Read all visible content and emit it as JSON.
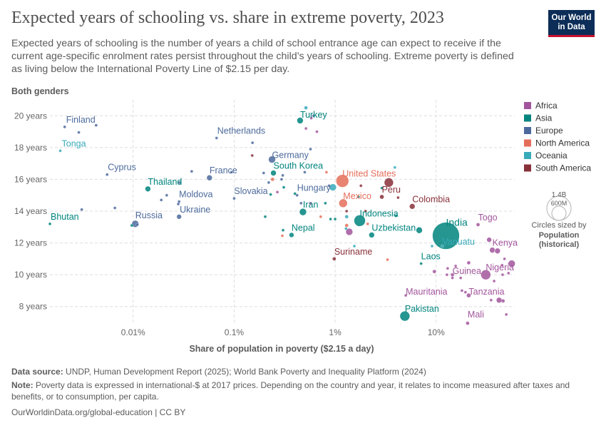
{
  "header": {
    "title": "Expected years of schooling vs. share in extreme poverty, 2023",
    "subtitle": "Expected years of schooling is the number of years a child of school entrance age can expect to receive if the current age-specific enrolment rates persist throughout the child’s years of schooling. Extreme poverty is defined as living below the International Poverty Line of $2.15 per day.",
    "logo_line1": "Our World",
    "logo_line2": "in Data"
  },
  "footer": {
    "source_label": "Data source:",
    "source_text": " UNDP, Human Development Report (2025); World Bank Poverty and Inequality Platform (2024)",
    "note_label": "Note:",
    "note_text": " Poverty data is expressed in international-$ at 2017 prices. Depending on the country and year, it relates to income measured after taxes and benefits, or to consumption, per capita.",
    "url": "OurWorldinData.org/global-education | CC BY"
  },
  "colors": {
    "Africa": "#a2559c",
    "Asia": "#00847e",
    "Europe": "#4c6a9c",
    "North America": "#e56e5a",
    "Oceania": "#38aaba",
    "South America": "#883039"
  },
  "size_legend": {
    "big_label": "1.4B",
    "small_label": "600M",
    "caption": "Circles sized by",
    "caption_bold_1": "Population",
    "caption_bold_2": "(historical)"
  },
  "chart_data": {
    "type": "scatter",
    "subtitle_label": "Both genders",
    "xlabel": "Share of population in poverty ($2.15 a day)",
    "ylabel": "",
    "x_scale": "log",
    "xlim": [
      0.0015,
      60
    ],
    "ylim": [
      7,
      21
    ],
    "x_ticks": [
      {
        "v": 0.01,
        "label": "0.01%"
      },
      {
        "v": 0.1,
        "label": "0.1%"
      },
      {
        "v": 1,
        "label": "1%"
      },
      {
        "v": 10,
        "label": "10%"
      }
    ],
    "y_ticks": [
      {
        "v": 8,
        "label": "8 years"
      },
      {
        "v": 10,
        "label": "10 years"
      },
      {
        "v": 12,
        "label": "12 years"
      },
      {
        "v": 14,
        "label": "14 years"
      },
      {
        "v": 16,
        "label": "16 years"
      },
      {
        "v": 18,
        "label": "18 years"
      },
      {
        "v": 20,
        "label": "20 years"
      }
    ],
    "grid": true,
    "legend_position": "right",
    "legend": [
      "Africa",
      "Asia",
      "Europe",
      "North America",
      "Oceania",
      "South America"
    ],
    "points": [
      {
        "label": "Bhutan",
        "continent": "Asia",
        "x": 0.0015,
        "y": 13.2,
        "size": 2,
        "lx": 1,
        "ly": -6
      },
      {
        "label": "Cyprus",
        "continent": "Europe",
        "x": 0.00553,
        "y": 16.3,
        "size": 2,
        "lx": 1,
        "ly": -6
      },
      {
        "label": "Finland",
        "continent": "Europe",
        "x": 0.0021,
        "y": 19.3,
        "size": 2,
        "lx": 2,
        "ly": -6
      },
      {
        "label": "Tonga",
        "continent": "Oceania",
        "x": 0.0019,
        "y": 17.8,
        "size": 2,
        "lx": 2,
        "ly": -6
      },
      {
        "label": "Thailand",
        "continent": "Asia",
        "x": 0.014,
        "y": 15.4,
        "size": 4,
        "lx": 0,
        "ly": -6
      },
      {
        "label": "Russia",
        "continent": "Europe",
        "x": 0.0105,
        "y": 13.2,
        "size": 5,
        "lx": 0,
        "ly": -8
      },
      {
        "label": "Moldova",
        "continent": "Europe",
        "x": 0.0285,
        "y": 14.6,
        "size": 2,
        "lx": 0,
        "ly": -6
      },
      {
        "label": "Ukraine",
        "continent": "Europe",
        "x": 0.0285,
        "y": 13.65,
        "size": 3.5,
        "lx": 1,
        "ly": -6
      },
      {
        "label": "France",
        "continent": "Europe",
        "x": 0.057,
        "y": 16.1,
        "size": 4,
        "lx": 0,
        "ly": -6
      },
      {
        "label": "Netherlands",
        "continent": "Europe",
        "x": 0.067,
        "y": 18.6,
        "size": 2,
        "lx": 1,
        "ly": -6
      },
      {
        "label": "Slovakia",
        "continent": "Europe",
        "x": 0.1,
        "y": 14.8,
        "size": 2,
        "lx": 0,
        "ly": -6
      },
      {
        "label": "Germany",
        "continent": "Europe",
        "x": 0.237,
        "y": 17.25,
        "size": 5,
        "lx": 0,
        "ly": -2
      },
      {
        "label": "South Korea",
        "continent": "Asia",
        "x": 0.245,
        "y": 16.4,
        "size": 4,
        "lx": 0,
        "ly": -6
      },
      {
        "label": "Turkey",
        "continent": "Asia",
        "x": 0.45,
        "y": 19.7,
        "size": 4.5,
        "lx": 0,
        "ly": -4
      },
      {
        "label": "Hungary",
        "continent": "Europe",
        "x": 0.42,
        "y": 15.0,
        "size": 2,
        "lx": 0,
        "ly": -6
      },
      {
        "label": "Iran",
        "continent": "Asia",
        "x": 0.48,
        "y": 13.95,
        "size": 5,
        "lx": 0,
        "ly": -6
      },
      {
        "label": "Nepal",
        "continent": "Asia",
        "x": 0.37,
        "y": 12.5,
        "size": 3.5,
        "lx": 0,
        "ly": -6
      },
      {
        "label": "United States",
        "continent": "North America",
        "x": 1.18,
        "y": 15.9,
        "size": 9,
        "lx": 0,
        "ly": -6
      },
      {
        "label": "Mexico",
        "continent": "North America",
        "x": 1.2,
        "y": 14.5,
        "size": 6,
        "lx": 0,
        "ly": -6
      },
      {
        "label": "Peru",
        "continent": "South America",
        "x": 2.9,
        "y": 14.9,
        "size": 3,
        "lx": 0,
        "ly": -6
      },
      {
        "label": "Colombia",
        "continent": "South America",
        "x": 5.8,
        "y": 14.3,
        "size": 4,
        "lx": 0,
        "ly": -6
      },
      {
        "label": "Indonesia",
        "continent": "Asia",
        "x": 1.75,
        "y": 13.4,
        "size": 8,
        "lx": 0,
        "ly": -6
      },
      {
        "label": "Uzbekistan",
        "continent": "Asia",
        "x": 2.3,
        "y": 12.5,
        "size": 4,
        "lx": 0,
        "ly": -6
      },
      {
        "label": "Suriname",
        "continent": "South America",
        "x": 0.98,
        "y": 11.0,
        "size": 2.5,
        "lx": 0,
        "ly": -6
      },
      {
        "label": "India",
        "continent": "Asia",
        "x": 12.5,
        "y": 12.45,
        "size": 19,
        "lx": 0,
        "ly": -14
      },
      {
        "label": "Vanuatu",
        "continent": "Oceania",
        "x": 11.5,
        "y": 11.8,
        "size": 2,
        "lx": 0,
        "ly": -2
      },
      {
        "label": "Laos",
        "continent": "Asia",
        "x": 7.1,
        "y": 10.7,
        "size": 2,
        "lx": 0,
        "ly": -6
      },
      {
        "label": "Pakistan",
        "continent": "Asia",
        "x": 4.9,
        "y": 7.4,
        "size": 7,
        "lx": 0,
        "ly": -6
      },
      {
        "label": "Togo",
        "continent": "Africa",
        "x": 26,
        "y": 13.15,
        "size": 2.5,
        "lx": 0,
        "ly": -6
      },
      {
        "label": "Kenya",
        "continent": "Africa",
        "x": 36,
        "y": 11.55,
        "size": 4,
        "lx": 0,
        "ly": -6
      },
      {
        "label": "Nigeria",
        "continent": "Africa",
        "x": 31,
        "y": 10.0,
        "size": 7,
        "lx": 0,
        "ly": -6
      },
      {
        "label": "Guinea",
        "continent": "Africa",
        "x": 14.5,
        "y": 10.0,
        "size": 2.5,
        "lx": 0,
        "ly": -1
      },
      {
        "label": "Mauritania",
        "continent": "Africa",
        "x": 5.0,
        "y": 8.7,
        "size": 2,
        "lx": 0,
        "ly": -1
      },
      {
        "label": "Tanzania",
        "continent": "Africa",
        "x": 21,
        "y": 8.7,
        "size": 3,
        "lx": 0,
        "ly": -1
      },
      {
        "label": "Mali",
        "continent": "Africa",
        "x": 20.5,
        "y": 6.95,
        "size": 2.5,
        "lx": 0,
        "ly": -8
      },
      {
        "label": "",
        "continent": "Europe",
        "x": 0.0029,
        "y": 18.95,
        "size": 2
      },
      {
        "label": "",
        "continent": "Europe",
        "x": 0.0043,
        "y": 19.4,
        "size": 2
      },
      {
        "label": "",
        "continent": "Europe",
        "x": 0.0031,
        "y": 14.1,
        "size": 2
      },
      {
        "label": "",
        "continent": "Europe",
        "x": 0.0066,
        "y": 14.2,
        "size": 2
      },
      {
        "label": "",
        "continent": "Europe",
        "x": 0.011,
        "y": 13.15,
        "size": 2
      },
      {
        "label": "",
        "continent": "Asia",
        "x": 0.0097,
        "y": 13.1,
        "size": 2
      },
      {
        "label": "",
        "continent": "Europe",
        "x": 0.019,
        "y": 14.7,
        "size": 2
      },
      {
        "label": "",
        "continent": "Europe",
        "x": 0.0215,
        "y": 15.0,
        "size": 2
      },
      {
        "label": "",
        "continent": "Europe",
        "x": 0.0288,
        "y": 15.8,
        "size": 2
      },
      {
        "label": "",
        "continent": "Europe",
        "x": 0.038,
        "y": 16.5,
        "size": 2
      },
      {
        "label": "",
        "continent": "Europe",
        "x": 0.028,
        "y": 14.45,
        "size": 2
      },
      {
        "label": "",
        "continent": "Europe",
        "x": 0.094,
        "y": 16.45,
        "size": 2
      },
      {
        "label": "",
        "continent": "Europe",
        "x": 0.152,
        "y": 18.3,
        "size": 2
      },
      {
        "label": "",
        "continent": "South America",
        "x": 0.151,
        "y": 17.5,
        "size": 2
      },
      {
        "label": "",
        "continent": "Europe",
        "x": 0.196,
        "y": 16.4,
        "size": 2
      },
      {
        "label": "",
        "continent": "Europe",
        "x": 0.22,
        "y": 15.8,
        "size": 2
      },
      {
        "label": "",
        "continent": "Europe",
        "x": 0.295,
        "y": 16.0,
        "size": 2
      },
      {
        "label": "",
        "continent": "Europe",
        "x": 0.303,
        "y": 16.25,
        "size": 2
      },
      {
        "label": "",
        "continent": "North America",
        "x": 0.24,
        "y": 16.0,
        "size": 2.5
      },
      {
        "label": "",
        "continent": "Asia",
        "x": 0.23,
        "y": 15.05,
        "size": 2
      },
      {
        "label": "",
        "continent": "Africa",
        "x": 0.268,
        "y": 15.2,
        "size": 2
      },
      {
        "label": "",
        "continent": "Asia",
        "x": 0.31,
        "y": 15.5,
        "size": 2
      },
      {
        "label": "",
        "continent": "Asia",
        "x": 0.203,
        "y": 13.65,
        "size": 2
      },
      {
        "label": "",
        "continent": "Asia",
        "x": 0.305,
        "y": 12.8,
        "size": 2
      },
      {
        "label": "",
        "continent": "North America",
        "x": 0.3,
        "y": 12.45,
        "size": 2
      },
      {
        "label": "",
        "continent": "Oceania",
        "x": 0.514,
        "y": 20.5,
        "size": 2.5
      },
      {
        "label": "",
        "continent": "Africa",
        "x": 0.514,
        "y": 19.2,
        "size": 2
      },
      {
        "label": "",
        "continent": "Africa",
        "x": 0.58,
        "y": 19.85,
        "size": 2
      },
      {
        "label": "",
        "continent": "Europe",
        "x": 0.61,
        "y": 20.0,
        "size": 2
      },
      {
        "label": "",
        "continent": "Africa",
        "x": 0.66,
        "y": 19.0,
        "size": 2
      },
      {
        "label": "",
        "continent": "Europe",
        "x": 0.57,
        "y": 17.9,
        "size": 2
      },
      {
        "label": "",
        "continent": "Europe",
        "x": 0.5,
        "y": 16.45,
        "size": 2
      },
      {
        "label": "",
        "continent": "Asia",
        "x": 0.4,
        "y": 15.1,
        "size": 2
      },
      {
        "label": "",
        "continent": "Europe",
        "x": 0.46,
        "y": 14.5,
        "size": 2
      },
      {
        "label": "",
        "continent": "Africa",
        "x": 0.57,
        "y": 14.5,
        "size": 2
      },
      {
        "label": "",
        "continent": "North America",
        "x": 0.72,
        "y": 13.65,
        "size": 2
      },
      {
        "label": "",
        "continent": "Asia",
        "x": 0.8,
        "y": 14.5,
        "size": 2
      },
      {
        "label": "",
        "continent": "North America",
        "x": 0.82,
        "y": 16.45,
        "size": 2
      },
      {
        "label": "",
        "continent": "Asia",
        "x": 0.9,
        "y": 13.5,
        "size": 2
      },
      {
        "label": "",
        "continent": "Oceania",
        "x": 0.95,
        "y": 15.5,
        "size": 5
      },
      {
        "label": "",
        "continent": "Europe",
        "x": 0.87,
        "y": 15.6,
        "size": 2
      },
      {
        "label": "",
        "continent": "Asia",
        "x": 1.0,
        "y": 13.5,
        "size": 2
      },
      {
        "label": "",
        "continent": "South America",
        "x": 1.3,
        "y": 14.0,
        "size": 2
      },
      {
        "label": "",
        "continent": "Oceania",
        "x": 1.3,
        "y": 13.65,
        "size": 2.5
      },
      {
        "label": "",
        "continent": "Africa",
        "x": 1.38,
        "y": 12.7,
        "size": 5
      },
      {
        "label": "",
        "continent": "Oceania",
        "x": 1.28,
        "y": 12.9,
        "size": 2
      },
      {
        "label": "",
        "continent": "North America",
        "x": 1.3,
        "y": 13.1,
        "size": 2.5
      },
      {
        "label": "",
        "continent": "Oceania",
        "x": 1.55,
        "y": 11.8,
        "size": 2
      },
      {
        "label": "",
        "continent": "Asia",
        "x": 1.7,
        "y": 14.9,
        "size": 2
      },
      {
        "label": "",
        "continent": "South America",
        "x": 1.8,
        "y": 15.6,
        "size": 2
      },
      {
        "label": "",
        "continent": "North America",
        "x": 2.1,
        "y": 13.2,
        "size": 2
      },
      {
        "label": "",
        "continent": "South America",
        "x": 2.0,
        "y": 14.0,
        "size": 2
      },
      {
        "label": "",
        "continent": "Asia",
        "x": 2.9,
        "y": 15.45,
        "size": 2
      },
      {
        "label": "",
        "continent": "South America",
        "x": 3.4,
        "y": 15.8,
        "size": 6.5
      },
      {
        "label": "",
        "continent": "North America",
        "x": 3.3,
        "y": 10.95,
        "size": 2
      },
      {
        "label": "",
        "continent": "Asia",
        "x": 4.0,
        "y": 13.7,
        "size": 2
      },
      {
        "label": "",
        "continent": "South America",
        "x": 4.2,
        "y": 14.85,
        "size": 2
      },
      {
        "label": "",
        "continent": "Oceania",
        "x": 3.9,
        "y": 16.75,
        "size": 2
      },
      {
        "label": "",
        "continent": "Asia",
        "x": 6.8,
        "y": 12.8,
        "size": 4.5
      },
      {
        "label": "",
        "continent": "Oceania",
        "x": 9.1,
        "y": 11.8,
        "size": 2
      },
      {
        "label": "",
        "continent": "Africa",
        "x": 9.6,
        "y": 10.2,
        "size": 2.5
      },
      {
        "label": "",
        "continent": "Africa",
        "x": 13.0,
        "y": 10.4,
        "size": 2
      },
      {
        "label": "",
        "continent": "Africa",
        "x": 12.8,
        "y": 10.0,
        "size": 2
      },
      {
        "label": "",
        "continent": "Africa",
        "x": 14.5,
        "y": 9.8,
        "size": 2
      },
      {
        "label": "",
        "continent": "Africa",
        "x": 15.6,
        "y": 10.55,
        "size": 2
      },
      {
        "label": "",
        "continent": "Africa",
        "x": 17.5,
        "y": 9.8,
        "size": 2
      },
      {
        "label": "",
        "continent": "Africa",
        "x": 21.0,
        "y": 10.75,
        "size": 2.5
      },
      {
        "label": "",
        "continent": "Africa",
        "x": 18.0,
        "y": 9.0,
        "size": 2
      },
      {
        "label": "",
        "continent": "Africa",
        "x": 19.5,
        "y": 8.9,
        "size": 2
      },
      {
        "label": "",
        "continent": "Africa",
        "x": 33.5,
        "y": 12.2,
        "size": 3.5
      },
      {
        "label": "",
        "continent": "Africa",
        "x": 40.5,
        "y": 11.5,
        "size": 4
      },
      {
        "label": "",
        "continent": "Africa",
        "x": 45.0,
        "y": 10.6,
        "size": 2
      },
      {
        "label": "",
        "continent": "Africa",
        "x": 45.5,
        "y": 10.0,
        "size": 2
      },
      {
        "label": "",
        "continent": "Africa",
        "x": 52.0,
        "y": 10.1,
        "size": 2
      },
      {
        "label": "",
        "continent": "Africa",
        "x": 56.0,
        "y": 10.7,
        "size": 5
      },
      {
        "label": "",
        "continent": "Africa",
        "x": 47.5,
        "y": 11.0,
        "size": 2
      },
      {
        "label": "",
        "continent": "Africa",
        "x": 37.5,
        "y": 9.6,
        "size": 2
      },
      {
        "label": "",
        "continent": "Africa",
        "x": 42.0,
        "y": 8.4,
        "size": 4
      },
      {
        "label": "",
        "continent": "Africa",
        "x": 46.0,
        "y": 8.35,
        "size": 2.5
      },
      {
        "label": "",
        "continent": "Africa",
        "x": 35.0,
        "y": 8.4,
        "size": 2
      },
      {
        "label": "",
        "continent": "Africa",
        "x": 49.5,
        "y": 7.5,
        "size": 2
      }
    ]
  }
}
